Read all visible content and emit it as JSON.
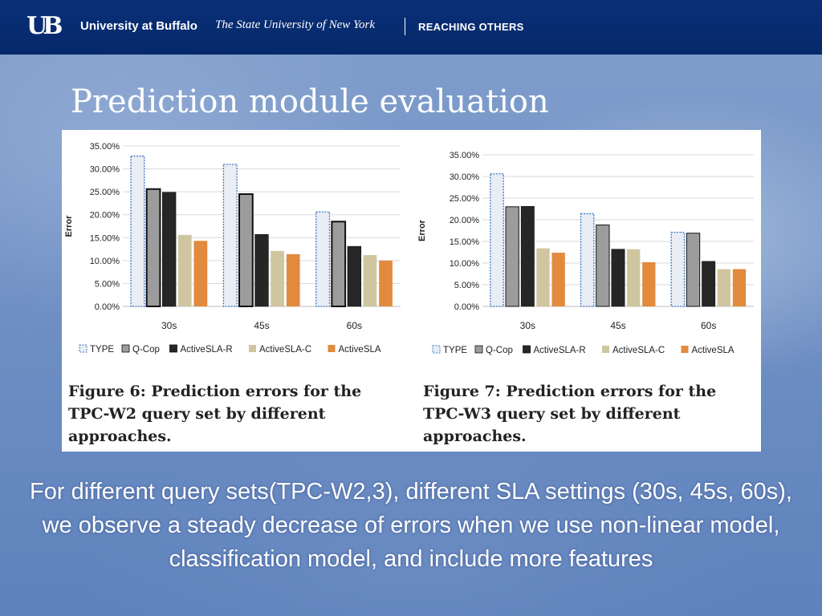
{
  "header": {
    "logo": "UB",
    "university": "University at Buffalo",
    "suny": "The State University of New York",
    "tagline": "REACHING OTHERS"
  },
  "slide": {
    "title": "Prediction module evaluation",
    "body": "For different query sets(TPC-W2,3), different SLA settings (30s, 45s, 60s), we observe a steady decrease of errors when we use non-linear model, classification model, and include more features"
  },
  "figures": {
    "fig6_caption": "Figure 6: Prediction errors for the TPC-W2 query set by different approaches.",
    "fig7_caption": "Figure 7: Prediction errors for the TPC-W3 query set by different approaches."
  },
  "series_colors": {
    "TYPE": "#e9edf4",
    "Q-Cop": "#9c9c9c",
    "ActiveSLA-R": "#262626",
    "ActiveSLA-C": "#cfc6a0",
    "ActiveSLA": "#e28a3e"
  },
  "chart_data": [
    {
      "type": "bar",
      "title": "",
      "xlabel": "",
      "ylabel": "Error",
      "ylim": [
        0,
        35
      ],
      "yticks": [
        "0.00%",
        "5.00%",
        "10.00%",
        "15.00%",
        "20.00%",
        "25.00%",
        "30.00%",
        "35.00%"
      ],
      "categories": [
        "30s",
        "45s",
        "60s"
      ],
      "grid": true,
      "legend": "bottom",
      "series": [
        {
          "name": "TYPE",
          "values": [
            32.8,
            31.0,
            20.6
          ]
        },
        {
          "name": "Q-Cop",
          "values": [
            25.6,
            24.5,
            18.5
          ]
        },
        {
          "name": "ActiveSLA-R",
          "values": [
            24.9,
            15.7,
            13.1
          ]
        },
        {
          "name": "ActiveSLA-C",
          "values": [
            15.6,
            12.1,
            11.2
          ]
        },
        {
          "name": "ActiveSLA",
          "values": [
            14.3,
            11.4,
            10.0
          ]
        }
      ]
    },
    {
      "type": "bar",
      "title": "",
      "xlabel": "",
      "ylabel": "Error",
      "ylim": [
        0,
        35
      ],
      "yticks": [
        "0.00%",
        "5.00%",
        "10.00%",
        "15.00%",
        "20.00%",
        "25.00%",
        "30.00%",
        "35.00%"
      ],
      "categories": [
        "30s",
        "45s",
        "60s"
      ],
      "grid": true,
      "legend": "bottom",
      "series": [
        {
          "name": "TYPE",
          "values": [
            30.6,
            21.4,
            17.1
          ]
        },
        {
          "name": "Q-Cop",
          "values": [
            23.0,
            18.8,
            16.9
          ]
        },
        {
          "name": "ActiveSLA-R",
          "values": [
            23.1,
            13.2,
            10.4
          ]
        },
        {
          "name": "ActiveSLA-C",
          "values": [
            13.4,
            13.2,
            8.6
          ]
        },
        {
          "name": "ActiveSLA",
          "values": [
            12.4,
            10.2,
            8.6
          ]
        }
      ]
    }
  ]
}
